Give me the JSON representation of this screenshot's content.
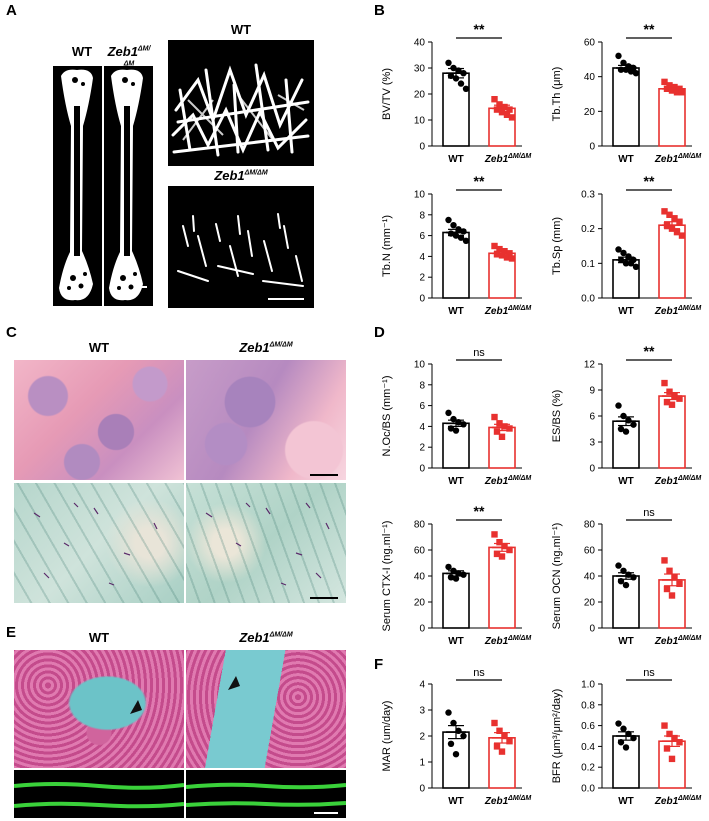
{
  "panels": {
    "A": {
      "letter": "A",
      "label_wt": "WT",
      "label_mut": "Zeb1",
      "label_mut_sup": "ΔM/ΔM",
      "ct_label_wt": "WT",
      "ct_label_mut": "Zeb1",
      "ct_label_mut_sup": "ΔM/ΔM"
    },
    "B": {
      "letter": "B"
    },
    "C": {
      "letter": "C",
      "label_wt": "WT",
      "label_mut": "Zeb1",
      "label_mut_sup": "ΔM/ΔM"
    },
    "D": {
      "letter": "D"
    },
    "E": {
      "letter": "E",
      "label_wt": "WT",
      "label_mut": "Zeb1",
      "label_mut_sup": "ΔM/ΔM"
    },
    "F": {
      "letter": "F"
    }
  },
  "colors": {
    "wt": "#000000",
    "mut": "#e8312f"
  },
  "chart_data": [
    {
      "id": "bvtv",
      "type": "bar",
      "categories": [
        "WT",
        "Zeb1ΔM/ΔM"
      ],
      "ylabel": "BV/TV (%)",
      "ylim": [
        0,
        40
      ],
      "yticks": [
        "0",
        "10",
        "20",
        "30",
        "40"
      ],
      "significance": "**",
      "series": [
        {
          "values": [
            28,
            14.5
          ],
          "errors": [
            1.8,
            1.2
          ]
        }
      ],
      "points": [
        [
          32,
          30,
          29,
          28,
          27,
          26,
          24,
          22
        ],
        [
          18,
          16,
          15,
          14,
          14,
          13,
          12,
          11
        ]
      ]
    },
    {
      "id": "tbth",
      "type": "bar",
      "categories": [
        "WT",
        "Zeb1ΔM/ΔM"
      ],
      "ylabel": "Tb.Th (μm)",
      "ylim": [
        0,
        60
      ],
      "yticks": [
        "0",
        "20",
        "40",
        "60"
      ],
      "significance": "**",
      "series": [
        {
          "values": [
            45,
            33
          ],
          "errors": [
            1.5,
            1
          ]
        }
      ],
      "points": [
        [
          52,
          48,
          46,
          45,
          44,
          44,
          43,
          42
        ],
        [
          37,
          35,
          34,
          33,
          33,
          32,
          31,
          31
        ]
      ]
    },
    {
      "id": "tbn",
      "type": "bar",
      "categories": [
        "WT",
        "Zeb1ΔM/ΔM"
      ],
      "ylabel": "Tb.N (mm⁻¹)",
      "ylim": [
        0,
        10
      ],
      "yticks": [
        "0",
        "2",
        "4",
        "6",
        "8",
        "10"
      ],
      "significance": "**",
      "series": [
        {
          "values": [
            6.3,
            4.3
          ],
          "errors": [
            0.3,
            0.2
          ]
        }
      ],
      "points": [
        [
          7.5,
          7,
          6.6,
          6.4,
          6.2,
          6,
          5.8,
          5.5
        ],
        [
          5,
          4.7,
          4.5,
          4.3,
          4.2,
          4.1,
          3.9,
          3.8
        ]
      ]
    },
    {
      "id": "tbsp",
      "type": "bar",
      "categories": [
        "WT",
        "Zeb1ΔM/ΔM"
      ],
      "ylabel": "Tb.Sp (mm)",
      "ylim": [
        0,
        0.3
      ],
      "yticks": [
        "0.0",
        "0.1",
        "0.2",
        "0.3"
      ],
      "significance": "**",
      "series": [
        {
          "values": [
            0.11,
            0.21
          ],
          "errors": [
            0.008,
            0.01
          ]
        }
      ],
      "points": [
        [
          0.14,
          0.13,
          0.12,
          0.11,
          0.11,
          0.1,
          0.1,
          0.09
        ],
        [
          0.25,
          0.24,
          0.23,
          0.22,
          0.21,
          0.2,
          0.19,
          0.18
        ]
      ]
    },
    {
      "id": "nocbs",
      "type": "bar",
      "categories": [
        "WT",
        "Zeb1ΔM/ΔM"
      ],
      "ylabel": "N.Oc/BS (mm⁻¹)",
      "ylim": [
        0,
        10
      ],
      "yticks": [
        "0",
        "2",
        "4",
        "6",
        "8",
        "10"
      ],
      "significance": "ns",
      "series": [
        {
          "values": [
            4.3,
            3.9
          ],
          "errors": [
            0.3,
            0.3
          ]
        }
      ],
      "points": [
        [
          5.3,
          4.7,
          4.4,
          4.2,
          3.8,
          3.6
        ],
        [
          4.9,
          4.3,
          4,
          3.8,
          3.5,
          3
        ]
      ]
    },
    {
      "id": "esbs",
      "type": "bar",
      "categories": [
        "WT",
        "Zeb1ΔM/ΔM"
      ],
      "ylabel": "ES/BS (%)",
      "ylim": [
        0,
        12
      ],
      "yticks": [
        "0",
        "3",
        "6",
        "9",
        "12"
      ],
      "significance": "**",
      "series": [
        {
          "values": [
            5.4,
            8.3
          ],
          "errors": [
            0.5,
            0.4
          ]
        }
      ],
      "points": [
        [
          7.2,
          6,
          5.5,
          5,
          4.5,
          4.2
        ],
        [
          9.8,
          8.8,
          8.3,
          8,
          7.6,
          7.3
        ]
      ]
    },
    {
      "id": "ctx",
      "type": "bar",
      "categories": [
        "WT",
        "Zeb1ΔM/ΔM"
      ],
      "ylabel": "Serum CTX-I (ng.ml⁻¹)",
      "ylim": [
        0,
        80
      ],
      "yticks": [
        "0",
        "20",
        "40",
        "60",
        "80"
      ],
      "significance": "**",
      "series": [
        {
          "values": [
            42,
            62
          ],
          "errors": [
            2,
            3
          ]
        }
      ],
      "points": [
        [
          47,
          44,
          42,
          41,
          39,
          38
        ],
        [
          72,
          66,
          63,
          60,
          57,
          55
        ]
      ]
    },
    {
      "id": "ocn",
      "type": "bar",
      "categories": [
        "WT",
        "Zeb1ΔM/ΔM"
      ],
      "ylabel": "Serum OCN (ng.ml⁻¹)",
      "ylim": [
        0,
        80
      ],
      "yticks": [
        "0",
        "20",
        "40",
        "60",
        "80"
      ],
      "significance": "ns",
      "series": [
        {
          "values": [
            40,
            37
          ],
          "errors": [
            2.5,
            4.5
          ]
        }
      ],
      "points": [
        [
          48,
          44,
          41,
          39,
          36,
          33
        ],
        [
          52,
          44,
          39,
          34,
          30,
          25
        ]
      ]
    },
    {
      "id": "mar",
      "type": "bar",
      "categories": [
        "WT",
        "Zeb1ΔM/ΔM"
      ],
      "ylabel": "MAR (um/day)",
      "ylim": [
        0,
        4
      ],
      "yticks": [
        "0",
        "1",
        "2",
        "3",
        "4"
      ],
      "significance": "ns",
      "series": [
        {
          "values": [
            2.15,
            1.93
          ],
          "errors": [
            0.25,
            0.2
          ]
        }
      ],
      "points": [
        [
          2.9,
          2.5,
          2.2,
          2,
          1.7,
          1.3
        ],
        [
          2.5,
          2.2,
          2,
          1.8,
          1.6,
          1.4
        ]
      ]
    },
    {
      "id": "bfr",
      "type": "bar",
      "categories": [
        "WT",
        "Zeb1ΔM/ΔM"
      ],
      "ylabel": "BFR (μm³/μm²/day)",
      "ylim": [
        0,
        1
      ],
      "yticks": [
        "0.0",
        "0.2",
        "0.4",
        "0.6",
        "0.8",
        "1.0"
      ],
      "significance": "ns",
      "series": [
        {
          "values": [
            0.5,
            0.45
          ],
          "errors": [
            0.04,
            0.05
          ]
        }
      ],
      "points": [
        [
          0.62,
          0.57,
          0.52,
          0.48,
          0.44,
          0.39
        ],
        [
          0.6,
          0.52,
          0.48,
          0.44,
          0.38,
          0.28
        ]
      ]
    }
  ]
}
